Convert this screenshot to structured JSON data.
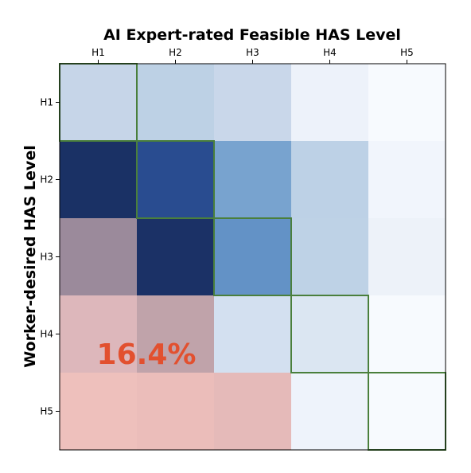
{
  "chart_data": {
    "type": "heatmap",
    "title": "",
    "xlabel": "AI Expert-rated Feasible HAS Level",
    "ylabel": "Worker-desired HAS Level",
    "x_categories": [
      "H1",
      "H2",
      "H3",
      "H4",
      "H5"
    ],
    "y_categories": [
      "H1",
      "H2",
      "H3",
      "H4",
      "H5"
    ],
    "x_axis_position": "top",
    "grid": false,
    "annotation": {
      "text": "16.4%"
    },
    "highlighted_cells": [
      {
        "row": "H1",
        "col": "H1"
      },
      {
        "row": "H2",
        "col": "H2"
      },
      {
        "row": "H3",
        "col": "H3"
      },
      {
        "row": "H4",
        "col": "H4"
      },
      {
        "row": "H5",
        "col": "H5"
      }
    ],
    "highlight_color": "#4a7f3c",
    "cell_colors": [
      [
        "#c6d5e8",
        "#bdd1e5",
        "#c9d7ea",
        "#edf2fa",
        "#f7fafe"
      ],
      [
        "#1a3165",
        "#294c90",
        "#78a3cf",
        "#bdd1e6",
        "#f1f5fc"
      ],
      [
        "#9b8a9b",
        "#1b3166",
        "#6392c6",
        "#bed2e6",
        "#edf2f9"
      ],
      [
        "#ddb7bb",
        "#c0a3aa",
        "#d3e0f0",
        "#dbe6f2",
        "#f7fafe"
      ],
      [
        "#eec0bc",
        "#ebbdba",
        "#e5bab9",
        "#eef3fb",
        "#f7fafe"
      ]
    ]
  }
}
